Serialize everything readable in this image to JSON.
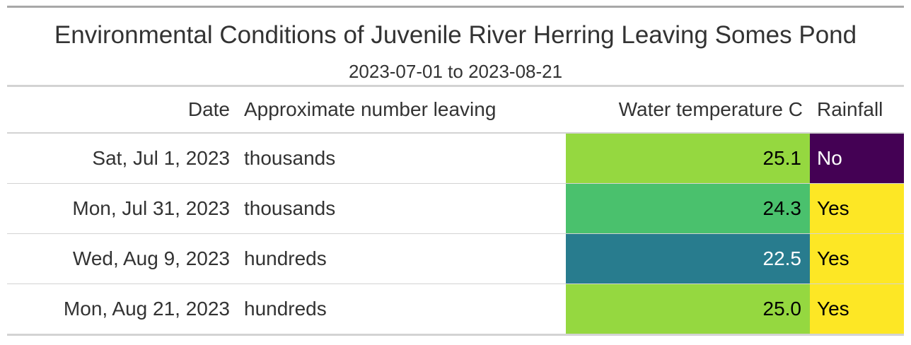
{
  "title": "Environmental Conditions of Juvenile River Herring Leaving Somes Pond",
  "subtitle": "2023-07-01 to 2023-08-21",
  "columns": {
    "date": "Date",
    "number": "Approximate number leaving",
    "temperature": "Water temperature C",
    "rainfall": "Rainfall"
  },
  "rows": [
    {
      "date": "Sat, Jul 1, 2023",
      "number": "thousands",
      "temperature": "25.1",
      "rainfall": "No",
      "temp_color": "#95d840",
      "temp_text_color": "#000000",
      "rain_color": "#440154",
      "rain_text_color": "#ffffff"
    },
    {
      "date": "Mon, Jul 31, 2023",
      "number": "thousands",
      "temperature": "24.3",
      "rainfall": "Yes",
      "temp_color": "#4ac16d",
      "temp_text_color": "#000000",
      "rain_color": "#fde725",
      "rain_text_color": "#000000"
    },
    {
      "date": "Wed, Aug 9, 2023",
      "number": "hundreds",
      "temperature": "22.5",
      "rainfall": "Yes",
      "temp_color": "#287c8e",
      "temp_text_color": "#ffffff",
      "rain_color": "#fde725",
      "rain_text_color": "#000000"
    },
    {
      "date": "Mon, Aug 21, 2023",
      "number": "hundreds",
      "temperature": "25.0",
      "rainfall": "Yes",
      "temp_color": "#95d840",
      "temp_text_color": "#000000",
      "rain_color": "#fde725",
      "rain_text_color": "#000000"
    }
  ],
  "chart_data": {
    "type": "table",
    "title": "Environmental Conditions of Juvenile River Herring Leaving Somes Pond",
    "subtitle": "2023-07-01 to 2023-08-21",
    "columns": [
      "Date",
      "Approximate number leaving",
      "Water temperature C",
      "Rainfall"
    ],
    "rows": [
      [
        "Sat, Jul 1, 2023",
        "thousands",
        25.1,
        "No"
      ],
      [
        "Mon, Jul 31, 2023",
        "thousands",
        24.3,
        "Yes"
      ],
      [
        "Wed, Aug 9, 2023",
        "hundreds",
        22.5,
        "Yes"
      ],
      [
        "Mon, Aug 21, 2023",
        "hundreds",
        25.0,
        "Yes"
      ]
    ]
  }
}
